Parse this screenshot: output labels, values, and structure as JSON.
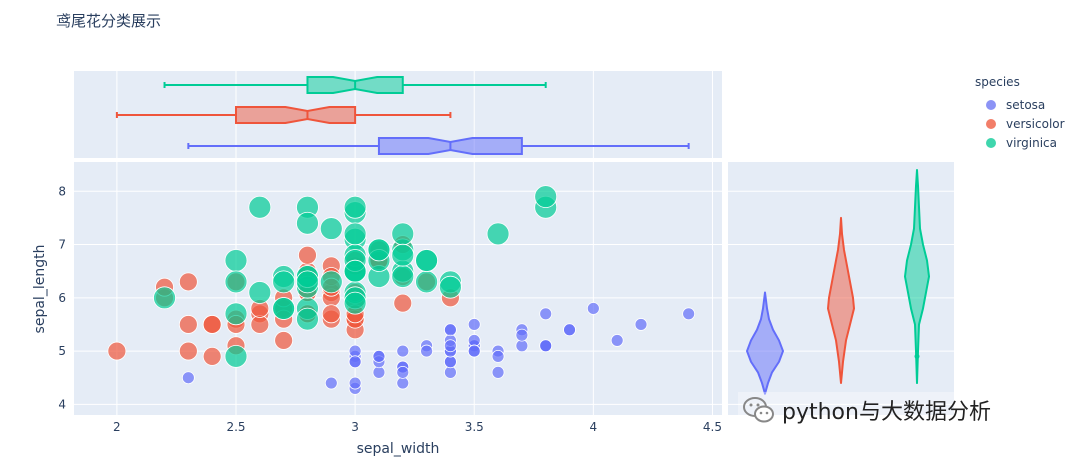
{
  "title": "鸢尾花分类展示",
  "watermark": "python与大数据分析",
  "legend": {
    "title": "species",
    "items": [
      {
        "name": "setosa",
        "color": "#636efa"
      },
      {
        "name": "versicolor",
        "color": "#ef553b"
      },
      {
        "name": "virginica",
        "color": "#00cc96"
      }
    ]
  },
  "chart_data": {
    "type": "scatter",
    "title": "鸢尾花分类展示",
    "xlabel": "sepal_width",
    "ylabel": "sepal_length",
    "xlim": [
      1.82,
      4.54
    ],
    "ylim": [
      3.8,
      8.55
    ],
    "xticks": [
      2,
      2.5,
      3,
      3.5,
      4,
      4.5
    ],
    "xtick_labels": [
      "2",
      "2.5",
      "3",
      "3.5",
      "4",
      "4.5"
    ],
    "yticks": [
      4,
      5,
      6,
      7,
      8
    ],
    "ytick_labels": [
      "4",
      "5",
      "6",
      "7",
      "8"
    ],
    "size_encoding": "by species (setosa small, virginica large)",
    "series": [
      {
        "name": "setosa",
        "color": "#636efa",
        "marker_size": 6,
        "points": [
          [
            3.5,
            5.1
          ],
          [
            3.0,
            4.9
          ],
          [
            3.2,
            4.7
          ],
          [
            3.1,
            4.6
          ],
          [
            3.6,
            5.0
          ],
          [
            3.9,
            5.4
          ],
          [
            3.4,
            4.6
          ],
          [
            3.4,
            5.0
          ],
          [
            2.9,
            4.4
          ],
          [
            3.1,
            4.9
          ],
          [
            3.7,
            5.4
          ],
          [
            3.4,
            4.8
          ],
          [
            3.0,
            4.8
          ],
          [
            3.0,
            4.3
          ],
          [
            4.0,
            5.8
          ],
          [
            4.4,
            5.7
          ],
          [
            3.9,
            5.4
          ],
          [
            3.5,
            5.1
          ],
          [
            3.8,
            5.7
          ],
          [
            3.8,
            5.1
          ],
          [
            3.4,
            5.4
          ],
          [
            3.7,
            5.1
          ],
          [
            3.6,
            4.6
          ],
          [
            3.3,
            5.1
          ],
          [
            3.4,
            4.8
          ],
          [
            3.0,
            5.0
          ],
          [
            3.4,
            5.0
          ],
          [
            3.5,
            5.2
          ],
          [
            3.4,
            5.2
          ],
          [
            3.2,
            4.7
          ],
          [
            3.1,
            4.8
          ],
          [
            3.4,
            5.4
          ],
          [
            4.1,
            5.2
          ],
          [
            4.2,
            5.5
          ],
          [
            3.1,
            4.9
          ],
          [
            3.2,
            5.0
          ],
          [
            3.5,
            5.5
          ],
          [
            3.6,
            4.9
          ],
          [
            3.0,
            4.4
          ],
          [
            3.4,
            5.1
          ],
          [
            3.5,
            5.0
          ],
          [
            2.3,
            4.5
          ],
          [
            3.2,
            4.4
          ],
          [
            3.5,
            5.0
          ],
          [
            3.8,
            5.1
          ],
          [
            3.0,
            4.8
          ],
          [
            3.8,
            5.1
          ],
          [
            3.2,
            4.6
          ],
          [
            3.7,
            5.3
          ],
          [
            3.3,
            5.0
          ]
        ]
      },
      {
        "name": "versicolor",
        "color": "#ef553b",
        "marker_size": 9,
        "points": [
          [
            3.2,
            7.0
          ],
          [
            3.2,
            6.4
          ],
          [
            3.1,
            6.9
          ],
          [
            2.3,
            5.5
          ],
          [
            2.8,
            6.5
          ],
          [
            2.8,
            5.7
          ],
          [
            3.3,
            6.3
          ],
          [
            2.4,
            4.9
          ],
          [
            2.9,
            6.6
          ],
          [
            2.7,
            5.2
          ],
          [
            2.0,
            5.0
          ],
          [
            3.0,
            5.9
          ],
          [
            2.2,
            6.0
          ],
          [
            2.9,
            6.1
          ],
          [
            2.9,
            5.6
          ],
          [
            3.1,
            6.7
          ],
          [
            3.0,
            5.6
          ],
          [
            2.7,
            5.8
          ],
          [
            2.2,
            6.2
          ],
          [
            2.5,
            5.6
          ],
          [
            3.2,
            5.9
          ],
          [
            2.8,
            6.1
          ],
          [
            2.5,
            6.3
          ],
          [
            2.8,
            6.1
          ],
          [
            2.9,
            6.4
          ],
          [
            3.0,
            6.6
          ],
          [
            2.8,
            6.8
          ],
          [
            3.0,
            6.7
          ],
          [
            2.9,
            6.0
          ],
          [
            2.6,
            5.7
          ],
          [
            2.4,
            5.5
          ],
          [
            2.4,
            5.5
          ],
          [
            2.7,
            5.8
          ],
          [
            2.7,
            6.0
          ],
          [
            3.0,
            5.4
          ],
          [
            3.4,
            6.0
          ],
          [
            3.1,
            6.7
          ],
          [
            2.3,
            6.3
          ],
          [
            3.0,
            5.6
          ],
          [
            2.5,
            5.5
          ],
          [
            2.6,
            5.5
          ],
          [
            3.0,
            6.1
          ],
          [
            2.6,
            5.8
          ],
          [
            2.3,
            5.0
          ],
          [
            2.7,
            5.6
          ],
          [
            3.0,
            5.7
          ],
          [
            2.9,
            5.7
          ],
          [
            2.9,
            6.2
          ],
          [
            2.5,
            5.1
          ],
          [
            2.8,
            5.7
          ]
        ]
      },
      {
        "name": "virginica",
        "color": "#00cc96",
        "marker_size": 11,
        "points": [
          [
            3.3,
            6.3
          ],
          [
            2.7,
            5.8
          ],
          [
            3.0,
            7.1
          ],
          [
            2.9,
            6.3
          ],
          [
            3.0,
            6.5
          ],
          [
            3.0,
            7.6
          ],
          [
            2.5,
            4.9
          ],
          [
            2.9,
            7.3
          ],
          [
            2.5,
            6.7
          ],
          [
            3.6,
            7.2
          ],
          [
            3.2,
            6.5
          ],
          [
            2.7,
            6.4
          ],
          [
            3.0,
            6.8
          ],
          [
            2.5,
            5.7
          ],
          [
            2.8,
            5.8
          ],
          [
            3.2,
            6.4
          ],
          [
            3.0,
            6.5
          ],
          [
            3.8,
            7.7
          ],
          [
            2.6,
            7.7
          ],
          [
            2.2,
            6.0
          ],
          [
            3.2,
            6.9
          ],
          [
            2.8,
            5.6
          ],
          [
            2.8,
            7.7
          ],
          [
            2.7,
            6.3
          ],
          [
            3.3,
            6.7
          ],
          [
            3.2,
            7.2
          ],
          [
            2.8,
            6.2
          ],
          [
            3.0,
            6.1
          ],
          [
            2.8,
            6.4
          ],
          [
            3.0,
            7.2
          ],
          [
            2.8,
            7.4
          ],
          [
            3.8,
            7.9
          ],
          [
            2.8,
            6.4
          ],
          [
            2.8,
            6.3
          ],
          [
            2.6,
            6.1
          ],
          [
            3.0,
            7.7
          ],
          [
            3.4,
            6.3
          ],
          [
            3.1,
            6.4
          ],
          [
            3.0,
            6.0
          ],
          [
            3.1,
            6.9
          ],
          [
            3.1,
            6.7
          ],
          [
            3.1,
            6.9
          ],
          [
            2.7,
            5.8
          ],
          [
            3.2,
            6.8
          ],
          [
            3.3,
            6.7
          ],
          [
            3.0,
            6.7
          ],
          [
            2.5,
            6.3
          ],
          [
            3.0,
            6.5
          ],
          [
            3.4,
            6.2
          ],
          [
            3.0,
            5.9
          ]
        ]
      }
    ],
    "marginal_x": {
      "type": "box",
      "variable": "sepal_width",
      "boxes": [
        {
          "name": "setosa",
          "color": "#636efa",
          "min": 2.3,
          "q1": 3.1,
          "median": 3.4,
          "q3": 3.7,
          "max": 4.4
        },
        {
          "name": "versicolor",
          "color": "#ef553b",
          "min": 2.0,
          "q1": 2.5,
          "median": 2.8,
          "q3": 3.0,
          "max": 3.4
        },
        {
          "name": "virginica",
          "color": "#00cc96",
          "min": 2.2,
          "q1": 2.8,
          "median": 3.0,
          "q3": 3.2,
          "max": 3.8
        }
      ]
    },
    "marginal_y": {
      "type": "violin",
      "variable": "sepal_length",
      "violins": [
        {
          "name": "setosa",
          "color": "#636efa",
          "min": 4.3,
          "max": 5.8,
          "median": 5.0
        },
        {
          "name": "versicolor",
          "color": "#ef553b",
          "min": 4.9,
          "max": 7.0,
          "median": 5.9
        },
        {
          "name": "virginica",
          "color": "#00cc96",
          "min": 4.9,
          "max": 7.9,
          "median": 6.5
        }
      ]
    }
  }
}
